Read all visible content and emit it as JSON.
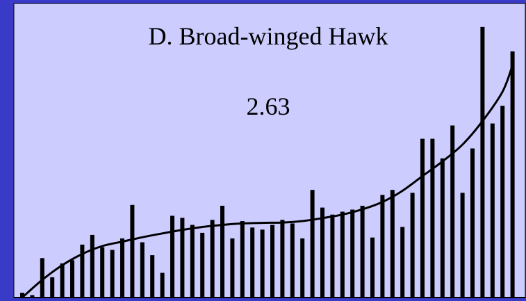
{
  "chart_data": {
    "type": "bar",
    "title": "D.  Broad-winged Hawk",
    "annotation": "2.63",
    "xlabel": "",
    "ylabel": "",
    "ylim": [
      0,
      100
    ],
    "grid": false,
    "legend": "none",
    "values": [
      1.6,
      0.8,
      13.4,
      6.9,
      11.6,
      12.7,
      18.0,
      21.3,
      17.1,
      16.2,
      20.1,
      31.5,
      18.8,
      14.4,
      8.4,
      27.8,
      27.1,
      24.7,
      22.0,
      26.4,
      31.2,
      20.1,
      26.0,
      23.8,
      23.1,
      24.7,
      26.4,
      25.2,
      20.1,
      36.6,
      30.6,
      28.2,
      29.2,
      29.9,
      31.2,
      20.4,
      34.9,
      36.6,
      24.0,
      35.6,
      54.0,
      54.0,
      47.3,
      58.5,
      35.6,
      50.7,
      92.0,
      59.2,
      65.2,
      83.7
    ],
    "trend": [
      {
        "x": 0,
        "y": 0.0
      },
      {
        "x": 2,
        "y": 6.0
      },
      {
        "x": 4,
        "y": 11.0
      },
      {
        "x": 6,
        "y": 14.8
      },
      {
        "x": 8,
        "y": 17.5
      },
      {
        "x": 10,
        "y": 19.0
      },
      {
        "x": 12,
        "y": 20.5
      },
      {
        "x": 14,
        "y": 21.8
      },
      {
        "x": 16,
        "y": 23.0
      },
      {
        "x": 18,
        "y": 24.0
      },
      {
        "x": 20,
        "y": 24.7
      },
      {
        "x": 22,
        "y": 25.2
      },
      {
        "x": 24,
        "y": 25.4
      },
      {
        "x": 26,
        "y": 25.5
      },
      {
        "x": 28,
        "y": 26.0
      },
      {
        "x": 30,
        "y": 27.0
      },
      {
        "x": 32,
        "y": 28.2
      },
      {
        "x": 34,
        "y": 30.0
      },
      {
        "x": 36,
        "y": 32.5
      },
      {
        "x": 38,
        "y": 36.3
      },
      {
        "x": 40,
        "y": 41.3
      },
      {
        "x": 42,
        "y": 46.3
      },
      {
        "x": 44,
        "y": 52.0
      },
      {
        "x": 46,
        "y": 60.0
      },
      {
        "x": 48,
        "y": 70.0
      },
      {
        "x": 49,
        "y": 79.0
      }
    ],
    "colors": {
      "background": "#3a3ac8",
      "plot_area": "#ccccff",
      "bars": "#000000",
      "trend_line": "#000000"
    }
  }
}
